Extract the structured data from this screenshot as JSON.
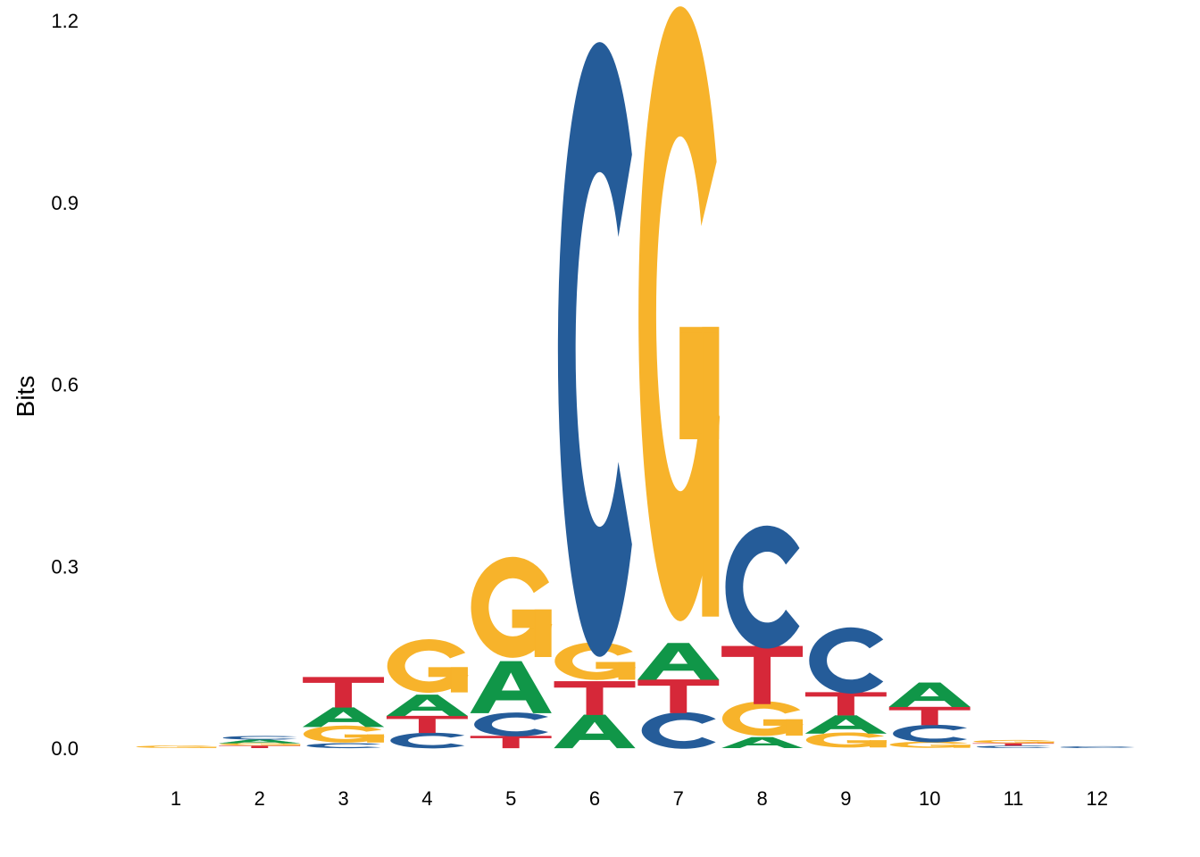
{
  "chart_data": {
    "type": "sequence-logo",
    "ylabel": "Bits",
    "ylim": [
      0,
      1.2
    ],
    "yticks": [
      "0.0",
      "0.3",
      "0.6",
      "0.9",
      "1.2"
    ],
    "positions": [
      "1",
      "2",
      "3",
      "4",
      "5",
      "6",
      "7",
      "8",
      "9",
      "10",
      "11",
      "12"
    ],
    "colors": {
      "A": "#109648",
      "C": "#255C99",
      "G": "#F7B32B",
      "T": "#D62839"
    },
    "stacks": [
      [
        {
          "base": "G",
          "bits": 0.004
        }
      ],
      [
        {
          "base": "T",
          "bits": 0.004
        },
        {
          "base": "G",
          "bits": 0.004
        },
        {
          "base": "A",
          "bits": 0.006
        },
        {
          "base": "C",
          "bits": 0.006
        }
      ],
      [
        {
          "base": "C",
          "bits": 0.008
        },
        {
          "base": "G",
          "bits": 0.027
        },
        {
          "base": "A",
          "bits": 0.032
        },
        {
          "base": "T",
          "bits": 0.05
        }
      ],
      [
        {
          "base": "C",
          "bits": 0.025
        },
        {
          "base": "T",
          "bits": 0.028
        },
        {
          "base": "A",
          "bits": 0.035
        },
        {
          "base": "G",
          "bits": 0.085
        }
      ],
      [
        {
          "base": "T",
          "bits": 0.02
        },
        {
          "base": "C",
          "bits": 0.038
        },
        {
          "base": "A",
          "bits": 0.085
        },
        {
          "base": "G",
          "bits": 0.16
        }
      ],
      [
        {
          "base": "A",
          "bits": 0.055
        },
        {
          "base": "T",
          "bits": 0.055
        },
        {
          "base": "G",
          "bits": 0.06
        },
        {
          "base": "C",
          "bits": 0.975
        }
      ],
      [
        {
          "base": "C",
          "bits": 0.058
        },
        {
          "base": "T",
          "bits": 0.055
        },
        {
          "base": "A",
          "bits": 0.06
        },
        {
          "base": "G",
          "bits": 0.975
        }
      ],
      [
        {
          "base": "A",
          "bits": 0.018
        },
        {
          "base": "G",
          "bits": 0.055
        },
        {
          "base": "T",
          "bits": 0.095
        },
        {
          "base": "C",
          "bits": 0.195
        }
      ],
      [
        {
          "base": "G",
          "bits": 0.024
        },
        {
          "base": "A",
          "bits": 0.03
        },
        {
          "base": "T",
          "bits": 0.038
        },
        {
          "base": "C",
          "bits": 0.105
        }
      ],
      [
        {
          "base": "G",
          "bits": 0.01
        },
        {
          "base": "C",
          "bits": 0.028
        },
        {
          "base": "T",
          "bits": 0.03
        },
        {
          "base": "A",
          "bits": 0.04
        }
      ],
      [
        {
          "base": "C",
          "bits": 0.004
        },
        {
          "base": "T",
          "bits": 0.004
        },
        {
          "base": "G",
          "bits": 0.005
        }
      ],
      [
        {
          "base": "C",
          "bits": 0.003
        }
      ]
    ]
  }
}
